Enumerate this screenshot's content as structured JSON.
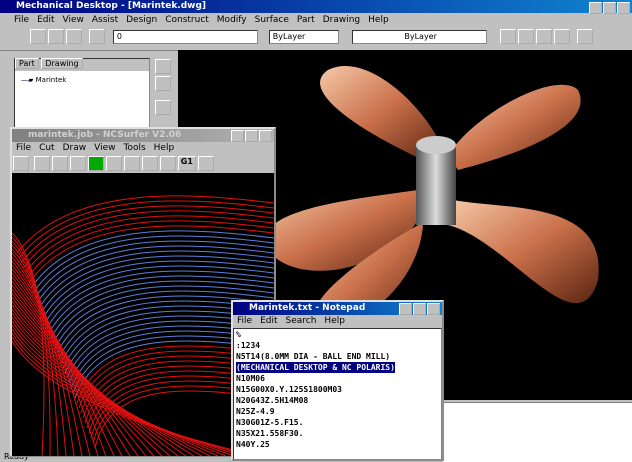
{
  "main_window": {
    "title": "Mechanical Desktop - [Marintek.dwg]",
    "menu": [
      "File",
      "Edit",
      "View",
      "Assist",
      "Design",
      "Construct",
      "Modify",
      "Surface",
      "Part",
      "Drawing",
      "Help"
    ],
    "toolbar": {
      "layer": "0",
      "color": "ByLayer",
      "linetype": "ByLayer"
    },
    "tabs": [
      "Part",
      "Drawing"
    ],
    "tree": [
      "Marintek"
    ],
    "status": "Ready"
  },
  "ncsurfer": {
    "title": "marintek.job - NCSurfer V2.06",
    "menu": [
      "File",
      "Cut",
      "Draw",
      "View",
      "Tools",
      "Help"
    ],
    "button": "G1"
  },
  "notepad": {
    "title": "Marintek.txt - Notepad",
    "menu": [
      "File",
      "Edit",
      "Search",
      "Help"
    ],
    "lines": [
      "%",
      ":1234",
      "N5T14(8.0MM DIA - BALL END MILL)",
      "(MECHANICAL DESKTOP & NC POLARIS)",
      "N10M06",
      "N15G00X0.Y.125S1800M03",
      "N20G43Z.5H14M08",
      "N25Z-4.9",
      "N30G01Z-5.F15.",
      "N35X21.558F30.",
      "N40Y.25"
    ]
  }
}
